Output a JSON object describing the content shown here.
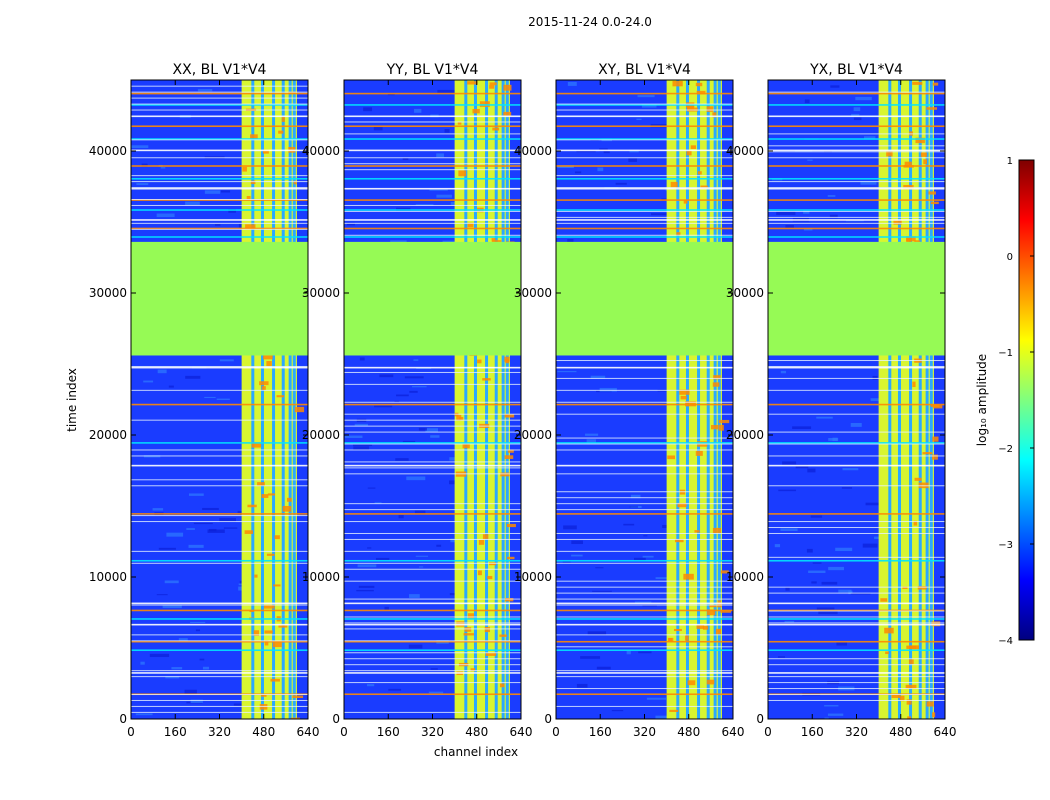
{
  "chart_data": {
    "type": "heatmap",
    "suptitle": "2015-11-24 0.0-24.0",
    "xlabel": "channel index",
    "ylabel": "time index",
    "xlim": [
      0,
      640
    ],
    "ylim": [
      0,
      45000
    ],
    "xticks": [
      "0",
      "160",
      "320",
      "480",
      "640"
    ],
    "yticks": [
      "0",
      "10000",
      "20000",
      "30000",
      "40000"
    ],
    "panels": [
      {
        "title": "XX, BL V1*V4"
      },
      {
        "title": "YY, BL V1*V4"
      },
      {
        "title": "XY, BL V1*V4"
      },
      {
        "title": "YX, BL V1*V4"
      }
    ],
    "flagged_time_range": [
      25600,
      33600
    ],
    "bright_channel_range": [
      400,
      600
    ],
    "colorbar": {
      "label": "log₁₀ amplitude",
      "range": [
        -4,
        1
      ],
      "ticks": [
        "1",
        "0",
        "−1",
        "−2",
        "−3",
        "−4"
      ],
      "colormap": [
        "#00007f",
        "#0000ff",
        "#007fff",
        "#00ffff",
        "#7fff7f",
        "#ffff00",
        "#ff7f00",
        "#ff0000",
        "#7f0000"
      ]
    },
    "colors": {
      "background": "#1a3cff",
      "flagged": "#96fa55",
      "band": "#d8f530",
      "hot": "#ff8a00"
    }
  }
}
